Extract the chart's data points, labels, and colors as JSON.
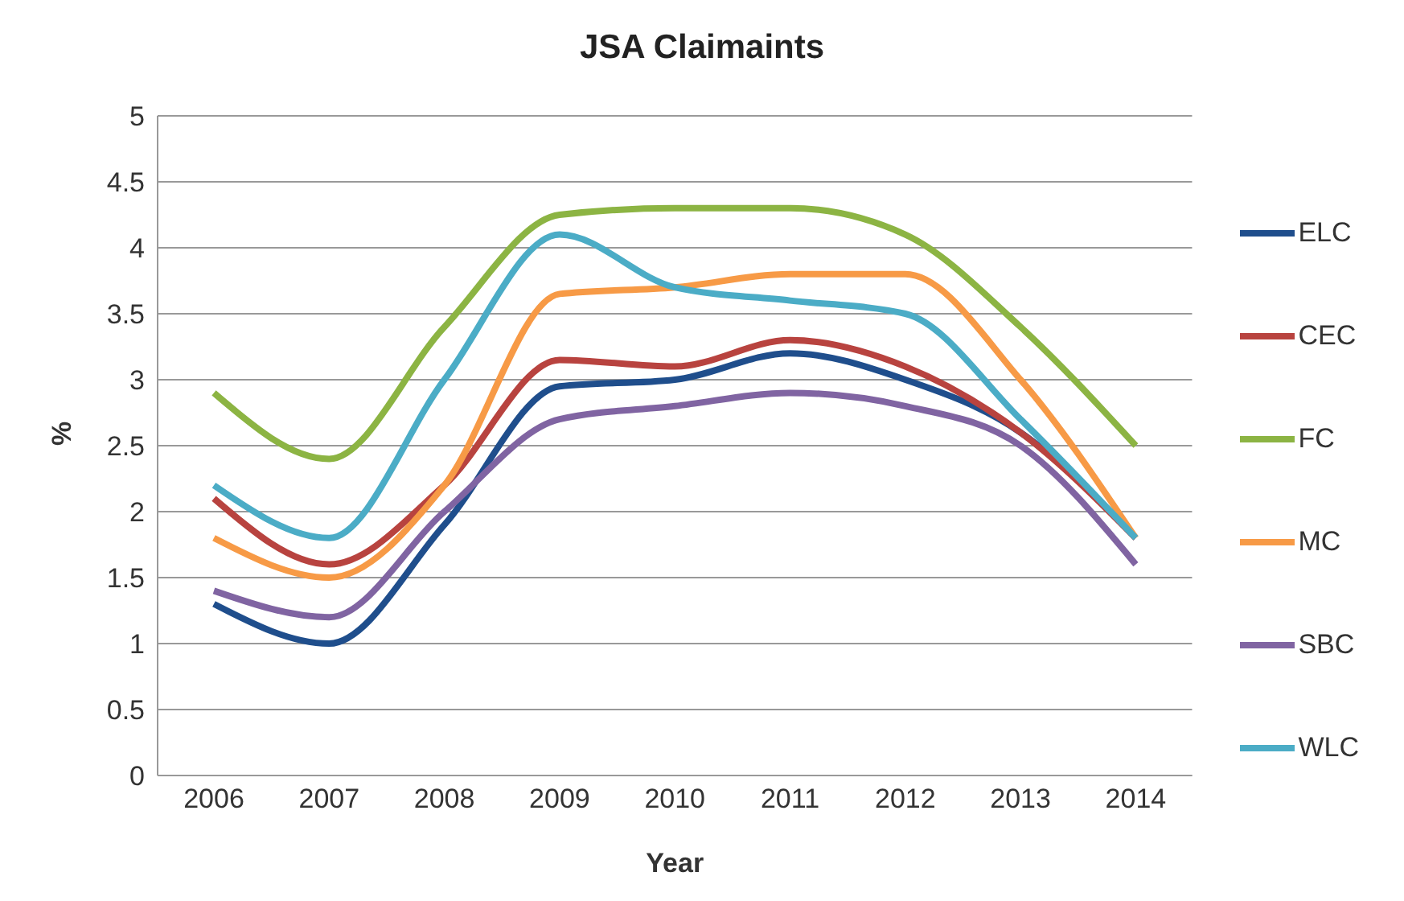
{
  "chart_data": {
    "type": "line",
    "title": "JSA Claimaints",
    "xlabel": "Year",
    "ylabel": "%",
    "categories": [
      "2006",
      "2007",
      "2008",
      "2009",
      "2010",
      "2011",
      "2012",
      "2013",
      "2014"
    ],
    "ylim": [
      0,
      5
    ],
    "yticks": [
      0,
      0.5,
      1,
      1.5,
      2,
      2.5,
      3,
      3.5,
      4,
      4.5,
      5
    ],
    "grid": "y",
    "legend": "right",
    "marker": "none",
    "line_style": "solid",
    "series": [
      {
        "name": "ELC",
        "color": "#1f4e8c",
        "values": [
          1.3,
          1.0,
          1.9,
          2.95,
          3.0,
          3.2,
          3.0,
          2.6,
          1.8
        ]
      },
      {
        "name": "CEC",
        "color": "#b8433f",
        "values": [
          2.1,
          1.6,
          2.2,
          3.15,
          3.1,
          3.3,
          3.1,
          2.6,
          1.8
        ]
      },
      {
        "name": "FC",
        "color": "#8cb443",
        "values": [
          2.9,
          2.4,
          3.4,
          4.25,
          4.3,
          4.3,
          4.1,
          3.4,
          2.5
        ]
      },
      {
        "name": "MC",
        "color": "#f79a46",
        "values": [
          1.8,
          1.5,
          2.2,
          3.65,
          3.7,
          3.8,
          3.8,
          3.0,
          1.8
        ]
      },
      {
        "name": "SBC",
        "color": "#8064a2",
        "values": [
          1.4,
          1.2,
          2.0,
          2.7,
          2.8,
          2.9,
          2.8,
          2.5,
          1.6
        ]
      },
      {
        "name": "WLC",
        "color": "#4bacc6",
        "values": [
          2.2,
          1.8,
          3.0,
          4.1,
          3.7,
          3.6,
          3.5,
          2.7,
          1.8
        ]
      }
    ]
  }
}
